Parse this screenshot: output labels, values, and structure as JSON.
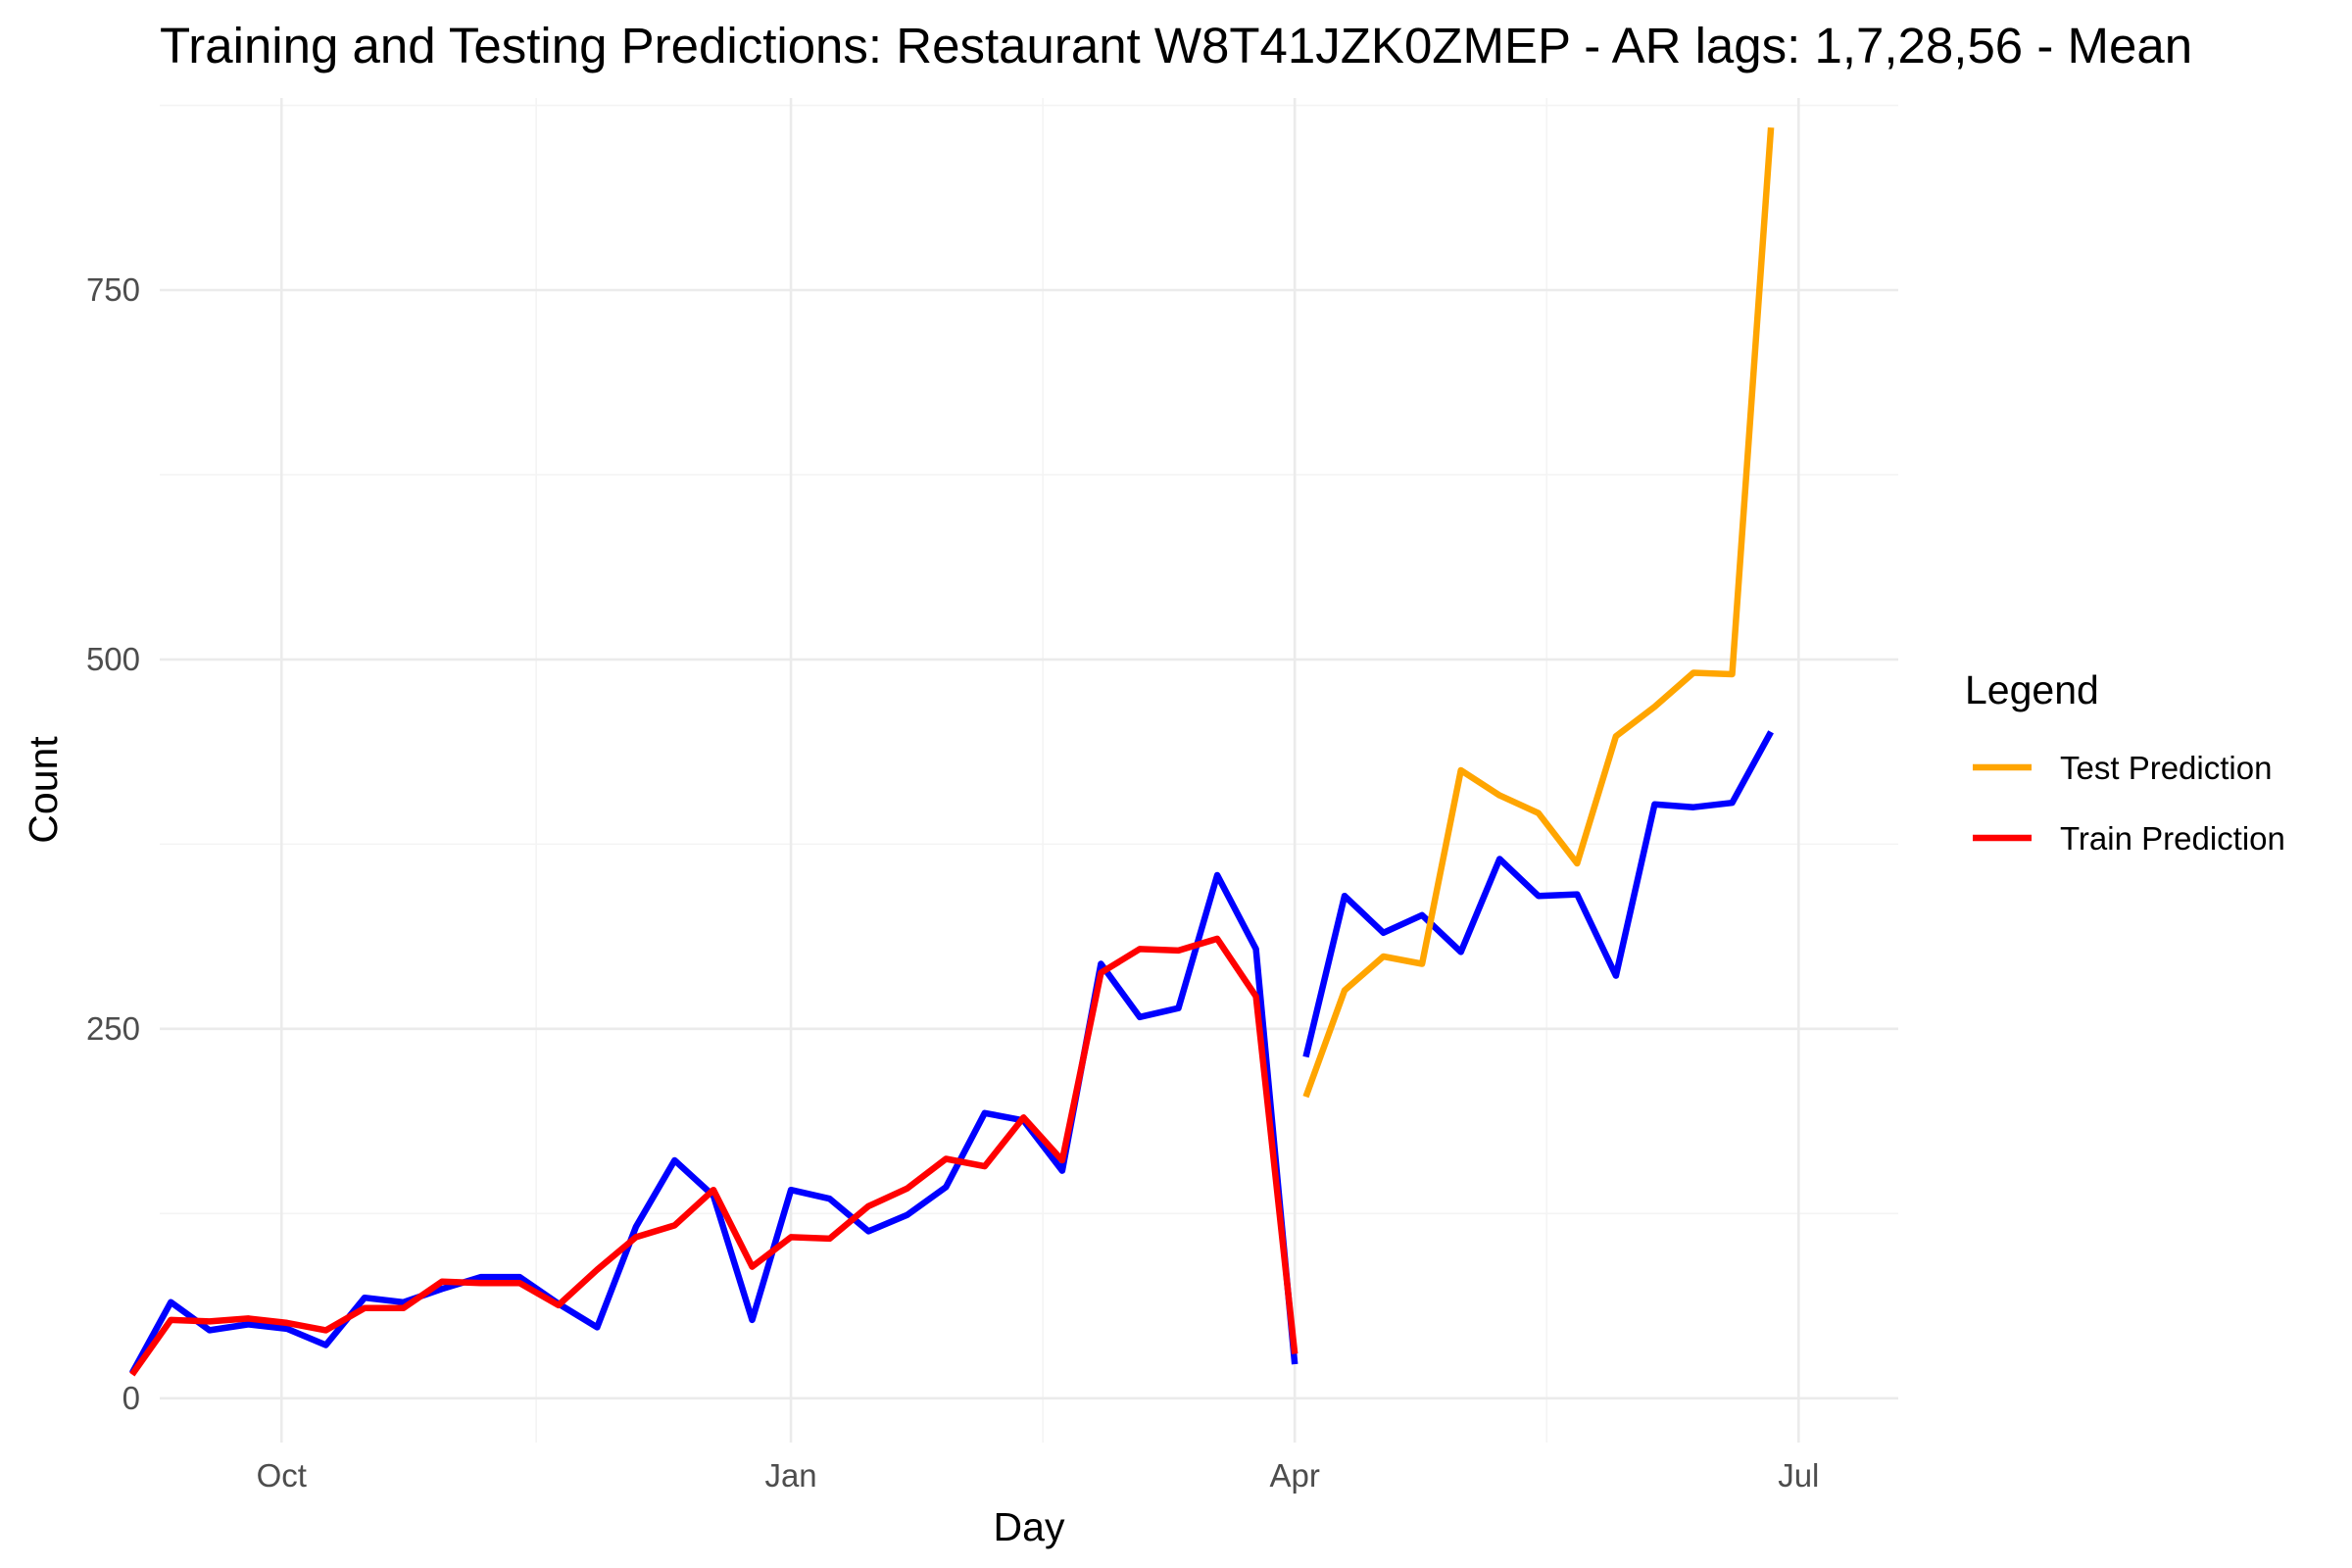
{
  "chart_data": {
    "type": "line",
    "title": "Training and Testing Predictions: Restaurant W8T41JZK0ZMEP - AR lags: 1,7,28,56 - Mean",
    "xlabel": "Day",
    "ylabel": "Count",
    "x_axis_type": "date",
    "xlim": [
      "2023-09-09",
      "2024-07-19"
    ],
    "ylim": [
      -30,
      880
    ],
    "y_ticks": [
      0,
      250,
      500,
      750
    ],
    "x_ticks": [
      {
        "date": "2023-10-01",
        "label": "Oct"
      },
      {
        "date": "2024-01-01",
        "label": "Jan"
      },
      {
        "date": "2024-04-01",
        "label": "Apr"
      },
      {
        "date": "2024-07-01",
        "label": "Jul"
      }
    ],
    "grid": true,
    "legend": {
      "title": "Legend",
      "placement": "right",
      "entries": [
        {
          "label": "Test Prediction",
          "color": "#FFA500"
        },
        {
          "label": "Train Prediction",
          "color": "#FF0000"
        }
      ]
    },
    "series": [
      {
        "key": "actual",
        "color": "#0000FF",
        "segments": [
          {
            "x": [
              "2023-09-04",
              "2023-09-11",
              "2023-09-18",
              "2023-09-25",
              "2023-10-02",
              "2023-10-09",
              "2023-10-16",
              "2023-10-23",
              "2023-10-30",
              "2023-11-06",
              "2023-11-13",
              "2023-11-20",
              "2023-11-27",
              "2023-12-04",
              "2023-12-11",
              "2023-12-18",
              "2023-12-25",
              "2024-01-01",
              "2024-01-08",
              "2024-01-15",
              "2024-01-22",
              "2024-01-29",
              "2024-02-05",
              "2024-02-12",
              "2024-02-19",
              "2024-02-26",
              "2024-03-04",
              "2024-03-11",
              "2024-03-18",
              "2024-03-25",
              "2024-04-01"
            ],
            "y": [
              17,
              65,
              46,
              50,
              47,
              36,
              68,
              65,
              74,
              82,
              82,
              64,
              48,
              116,
              161,
              137,
              53,
              141,
              135,
              113,
              124,
              143,
              193,
              188,
              154,
              294,
              258,
              264,
              354,
              304,
              23
            ]
          },
          {
            "x": [
              "2024-04-03",
              "2024-04-10",
              "2024-04-17",
              "2024-04-24",
              "2024-05-01",
              "2024-05-08",
              "2024-05-15",
              "2024-05-22",
              "2024-05-29",
              "2024-06-05",
              "2024-06-12",
              "2024-06-19",
              "2024-06-26"
            ],
            "y": [
              231,
              340,
              315,
              327,
              302,
              365,
              340,
              341,
              286,
              402,
              400,
              403,
              451
            ]
          }
        ]
      },
      {
        "key": "train",
        "name": "Train Prediction",
        "color": "#FF0000",
        "segments": [
          {
            "x": [
              "2023-09-04",
              "2023-09-11",
              "2023-09-18",
              "2023-09-25",
              "2023-10-02",
              "2023-10-09",
              "2023-10-16",
              "2023-10-23",
              "2023-10-30",
              "2023-11-06",
              "2023-11-13",
              "2023-11-20",
              "2023-11-27",
              "2023-12-04",
              "2023-12-11",
              "2023-12-18",
              "2023-12-25",
              "2024-01-01",
              "2024-01-08",
              "2024-01-15",
              "2024-01-22",
              "2024-01-29",
              "2024-02-05",
              "2024-02-12",
              "2024-02-19",
              "2024-02-26",
              "2024-03-04",
              "2024-03-11",
              "2024-03-18",
              "2024-03-25",
              "2024-04-01"
            ],
            "y": [
              16,
              53,
              52,
              54,
              51,
              46,
              61,
              61,
              79,
              78,
              78,
              63,
              87,
              109,
              117,
              141,
              89,
              109,
              108,
              130,
              142,
              162,
              157,
              190,
              161,
              288,
              304,
              303,
              311,
              272,
              30
            ]
          }
        ]
      },
      {
        "key": "test",
        "name": "Test Prediction",
        "color": "#FFA500",
        "segments": [
          {
            "x": [
              "2024-04-03",
              "2024-04-10",
              "2024-04-17",
              "2024-04-24",
              "2024-05-01",
              "2024-05-08",
              "2024-05-15",
              "2024-05-22",
              "2024-05-29",
              "2024-06-05",
              "2024-06-12",
              "2024-06-19",
              "2024-06-26"
            ],
            "y": [
              204,
              276,
              299,
              294,
              425,
              408,
              396,
              362,
              448,
              468,
              491,
              490,
              860
            ]
          }
        ]
      }
    ]
  }
}
